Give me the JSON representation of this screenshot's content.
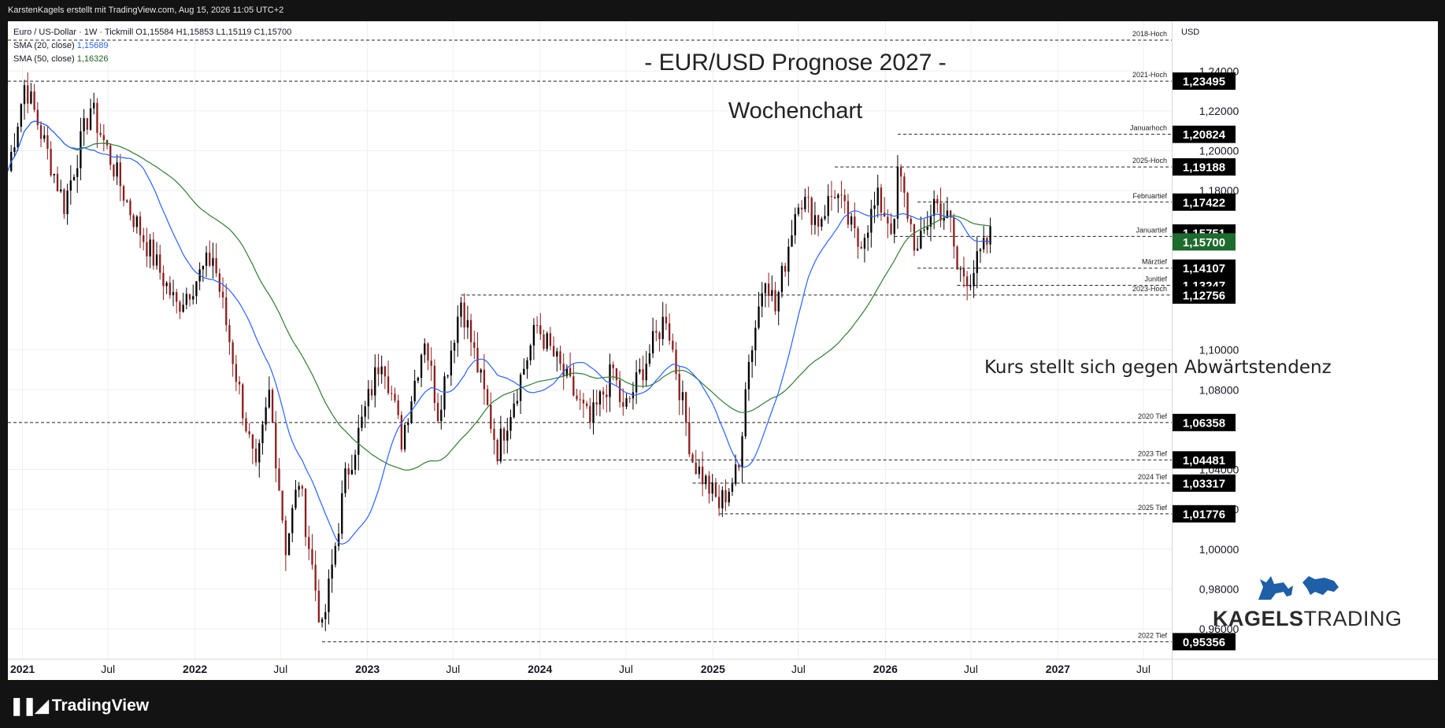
{
  "header": {
    "attribution": "KarstenKagels erstellt mit TradingView.com, Aug 15, 2026 11:05 UTC+2"
  },
  "legend": {
    "symbol": "Euro / US-Dollar · 1W · Tickmill",
    "ohlc": "O1,15584  H1,15853  L1,15119  C1,15700",
    "sma20_label": "SMA (20, close)",
    "sma20_value": "1,15689",
    "sma50_label": "SMA (50, close)",
    "sma50_value": "1,16326"
  },
  "chart_title": "- EUR/USD Prognose 2027 -",
  "chart_subtitle": "Wochenchart",
  "annotation": "Kurs stellt sich gegen Abwärtstendenz",
  "brand": {
    "name_bold": "KAGELS",
    "name_light": "TRADING"
  },
  "footer": {
    "logo_text": "TradingView"
  },
  "colors": {
    "up": "#000000",
    "down": "#8b1e1e",
    "sma20": "#2962ff",
    "sma50": "#2e7d32",
    "current_price_bg": "#1e6b2e",
    "label_bg": "#000000",
    "background": "#ffffff"
  },
  "chart_data": {
    "type": "candlestick",
    "currency": "USD",
    "xlim": [
      "2020-12-01",
      "2027-08-30"
    ],
    "ylim": [
      0.945,
      1.265
    ],
    "x_ticks": [
      {
        "label": "2021",
        "date": "2021-01-01",
        "bold": true
      },
      {
        "label": "Jul",
        "date": "2021-07-01",
        "bold": false
      },
      {
        "label": "2022",
        "date": "2022-01-01",
        "bold": true
      },
      {
        "label": "Jul",
        "date": "2022-07-01",
        "bold": false
      },
      {
        "label": "2023",
        "date": "2023-01-01",
        "bold": true
      },
      {
        "label": "Jul",
        "date": "2023-07-01",
        "bold": false
      },
      {
        "label": "2024",
        "date": "2024-01-01",
        "bold": true
      },
      {
        "label": "Jul",
        "date": "2024-07-01",
        "bold": false
      },
      {
        "label": "2025",
        "date": "2025-01-01",
        "bold": true
      },
      {
        "label": "Jul",
        "date": "2025-07-01",
        "bold": false
      },
      {
        "label": "2026",
        "date": "2026-01-01",
        "bold": true
      },
      {
        "label": "Jul",
        "date": "2026-07-01",
        "bold": false
      },
      {
        "label": "2027",
        "date": "2027-01-01",
        "bold": true
      },
      {
        "label": "Jul",
        "date": "2027-07-01",
        "bold": false
      }
    ],
    "y_ticks": [
      {
        "label": "1,24000",
        "value": 1.24
      },
      {
        "label": "1,22000",
        "value": 1.22
      },
      {
        "label": "1,20000",
        "value": 1.2
      },
      {
        "label": "1,18000",
        "value": 1.18
      },
      {
        "label": "1,10000",
        "value": 1.1
      },
      {
        "label": "1,08000",
        "value": 1.08
      },
      {
        "label": "1,04000",
        "value": 1.04
      },
      {
        "label": "1,02000",
        "value": 1.02
      },
      {
        "label": "1,00000",
        "value": 1.0
      },
      {
        "label": "0,98000",
        "value": 0.98
      },
      {
        "label": "0,96000",
        "value": 0.96
      }
    ],
    "levels": [
      {
        "name": "2018-Hoch",
        "value": 1.2555,
        "price_label": "",
        "start": "2020-12-01"
      },
      {
        "name": "2021-Hoch",
        "value": 1.23495,
        "price_label": "1,23495",
        "start": "2020-12-01"
      },
      {
        "name": "Januarhoch",
        "value": 1.20824,
        "price_label": "1,20824",
        "start": "2026-01-27"
      },
      {
        "name": "2025-Hoch",
        "value": 1.19188,
        "price_label": "1,19188",
        "start": "2025-09-16"
      },
      {
        "name": "Februartief",
        "value": 1.17422,
        "price_label": "1,17422",
        "start": "2026-03-10"
      },
      {
        "name": "Januartief",
        "value": 1.157,
        "price_label": "",
        "start": "2026-01-20"
      },
      {
        "name": "Märztief",
        "value": 1.14107,
        "price_label": "1,14107",
        "start": "2026-03-10"
      },
      {
        "name": "Junitief",
        "value": 1.13247,
        "price_label": "1,13247",
        "start": "2026-06-02"
      },
      {
        "name": "2023-Hoch",
        "value": 1.12756,
        "price_label": "1,12756",
        "start": "2023-07-18"
      },
      {
        "name": "2020 Tief",
        "value": 1.06358,
        "price_label": "1,06358",
        "start": "2020-12-01"
      },
      {
        "name": "2023 Tief",
        "value": 1.04481,
        "price_label": "1,04481",
        "start": "2023-10-03"
      },
      {
        "name": "2024 Tief",
        "value": 1.03317,
        "price_label": "1,03317",
        "start": "2024-11-19"
      },
      {
        "name": "2025 Tief",
        "value": 1.01776,
        "price_label": "1,01776",
        "start": "2025-01-14"
      },
      {
        "name": "2022 Tief",
        "value": 0.95356,
        "price_label": "0,95356",
        "start": "2022-09-27"
      }
    ],
    "current_price": {
      "value": 1.157,
      "label": "1,15700"
    },
    "extra_price_label": {
      "value": 1.15751,
      "label": "1,15751"
    },
    "anchors": [
      [
        "2020-12-01",
        1.19
      ],
      [
        "2021-01-06",
        1.234
      ],
      [
        "2021-03-30",
        1.173
      ],
      [
        "2021-05-25",
        1.222
      ],
      [
        "2021-08-17",
        1.17
      ],
      [
        "2021-11-23",
        1.122
      ],
      [
        "2022-02-08",
        1.147
      ],
      [
        "2022-05-10",
        1.037
      ],
      [
        "2022-06-07",
        1.078
      ],
      [
        "2022-07-12",
        1.001
      ],
      [
        "2022-08-09",
        1.035
      ],
      [
        "2022-09-27",
        0.958
      ],
      [
        "2022-11-15",
        1.035
      ],
      [
        "2023-02-01",
        1.099
      ],
      [
        "2023-03-14",
        1.055
      ],
      [
        "2023-05-02",
        1.107
      ],
      [
        "2023-05-30",
        1.069
      ],
      [
        "2023-07-18",
        1.125
      ],
      [
        "2023-10-03",
        1.05
      ],
      [
        "2023-12-26",
        1.112
      ],
      [
        "2024-04-16",
        1.063
      ],
      [
        "2024-06-04",
        1.09
      ],
      [
        "2024-06-25",
        1.068
      ],
      [
        "2024-09-24",
        1.118
      ],
      [
        "2024-11-19",
        1.045
      ],
      [
        "2025-01-14",
        1.022
      ],
      [
        "2025-02-25",
        1.04
      ],
      [
        "2025-03-11",
        1.085
      ],
      [
        "2025-04-22",
        1.14
      ],
      [
        "2025-05-13",
        1.12
      ],
      [
        "2025-07-01",
        1.178
      ],
      [
        "2025-08-12",
        1.165
      ],
      [
        "2025-09-16",
        1.18
      ],
      [
        "2025-11-04",
        1.153
      ],
      [
        "2025-12-16",
        1.175
      ],
      [
        "2026-01-20",
        1.16
      ],
      [
        "2026-01-27",
        1.19
      ],
      [
        "2026-03-10",
        1.148
      ],
      [
        "2026-04-14",
        1.175
      ],
      [
        "2026-05-19",
        1.163
      ],
      [
        "2026-06-02",
        1.14
      ],
      [
        "2026-06-30",
        1.137
      ],
      [
        "2026-08-11",
        1.157
      ]
    ]
  }
}
